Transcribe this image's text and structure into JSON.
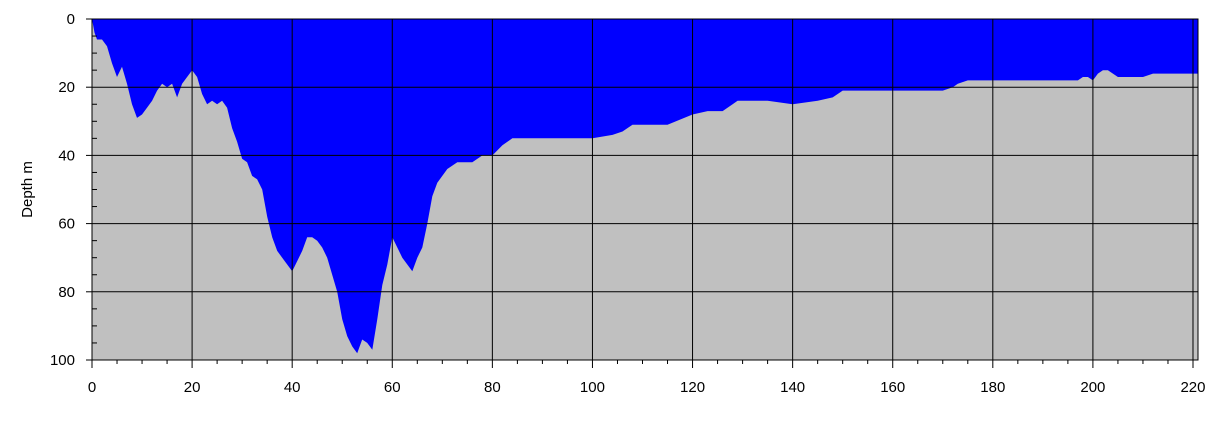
{
  "chart_data": {
    "type": "area",
    "title": "",
    "xlabel": "",
    "ylabel": "Depth m",
    "xlim": [
      0,
      221
    ],
    "ylim": [
      0,
      100
    ],
    "y_inverted": true,
    "grid": true,
    "legend": "none",
    "x_ticks": [
      0,
      20,
      40,
      60,
      80,
      100,
      120,
      140,
      160,
      180,
      200,
      220
    ],
    "y_ticks": [
      0,
      20,
      40,
      60,
      80,
      100
    ],
    "colors": {
      "water": "#0000ff",
      "bed": "#c0c0c0",
      "grid": "#000000",
      "background": "#ffffff"
    },
    "series": [
      {
        "x": [
          0,
          0.5,
          1,
          2,
          3,
          4,
          5,
          6,
          7,
          8,
          9,
          10,
          11,
          12,
          13,
          14,
          15,
          16,
          17,
          18,
          19,
          20,
          21,
          22,
          23,
          24,
          25,
          26,
          27,
          28,
          29,
          30,
          31,
          32,
          33,
          34,
          35,
          36,
          37,
          38,
          39,
          40,
          41,
          42,
          43,
          44,
          45,
          46,
          47,
          48,
          49,
          50,
          51,
          52,
          53,
          54,
          55,
          56,
          57,
          58,
          59,
          60,
          61,
          62,
          63,
          64,
          65,
          66,
          67,
          68,
          69,
          70,
          71,
          72,
          73,
          74,
          75,
          76,
          78,
          80,
          82,
          84,
          86,
          88,
          90,
          95,
          100,
          104,
          106,
          108,
          110,
          115,
          120,
          123,
          126,
          128,
          129,
          131,
          135,
          140,
          145,
          148,
          150,
          155,
          160,
          165,
          170,
          172,
          173,
          175,
          180,
          185,
          190,
          195,
          197,
          198,
          199,
          200,
          201,
          202,
          203,
          204,
          205,
          208,
          210,
          212,
          215,
          221
        ],
        "y": [
          0,
          4,
          6,
          6,
          8,
          13,
          17,
          14,
          19,
          25,
          29,
          28,
          26,
          24,
          21,
          19,
          20,
          19,
          23,
          19,
          17,
          15,
          17,
          22,
          25,
          24,
          25,
          24,
          26,
          32,
          36,
          41,
          42,
          46,
          47,
          50,
          58,
          64,
          68,
          70,
          72,
          74,
          71,
          68,
          64,
          64,
          65,
          67,
          70,
          75,
          80,
          88,
          93,
          96,
          98,
          94,
          95,
          97,
          88,
          78,
          72,
          64,
          67,
          70,
          72,
          74,
          70,
          67,
          60,
          52,
          48,
          46,
          44,
          43,
          42,
          42,
          42,
          42,
          40,
          40,
          37,
          35,
          35,
          35,
          35,
          35,
          35,
          34,
          33,
          31,
          31,
          31,
          28,
          27,
          27,
          25,
          24,
          24,
          24,
          25,
          24,
          23,
          21,
          21,
          21,
          21,
          21,
          20,
          19,
          18,
          18,
          18,
          18,
          18,
          18,
          17,
          17,
          18,
          16,
          15,
          15,
          16,
          17,
          17,
          17,
          16,
          16,
          16
        ]
      }
    ]
  }
}
